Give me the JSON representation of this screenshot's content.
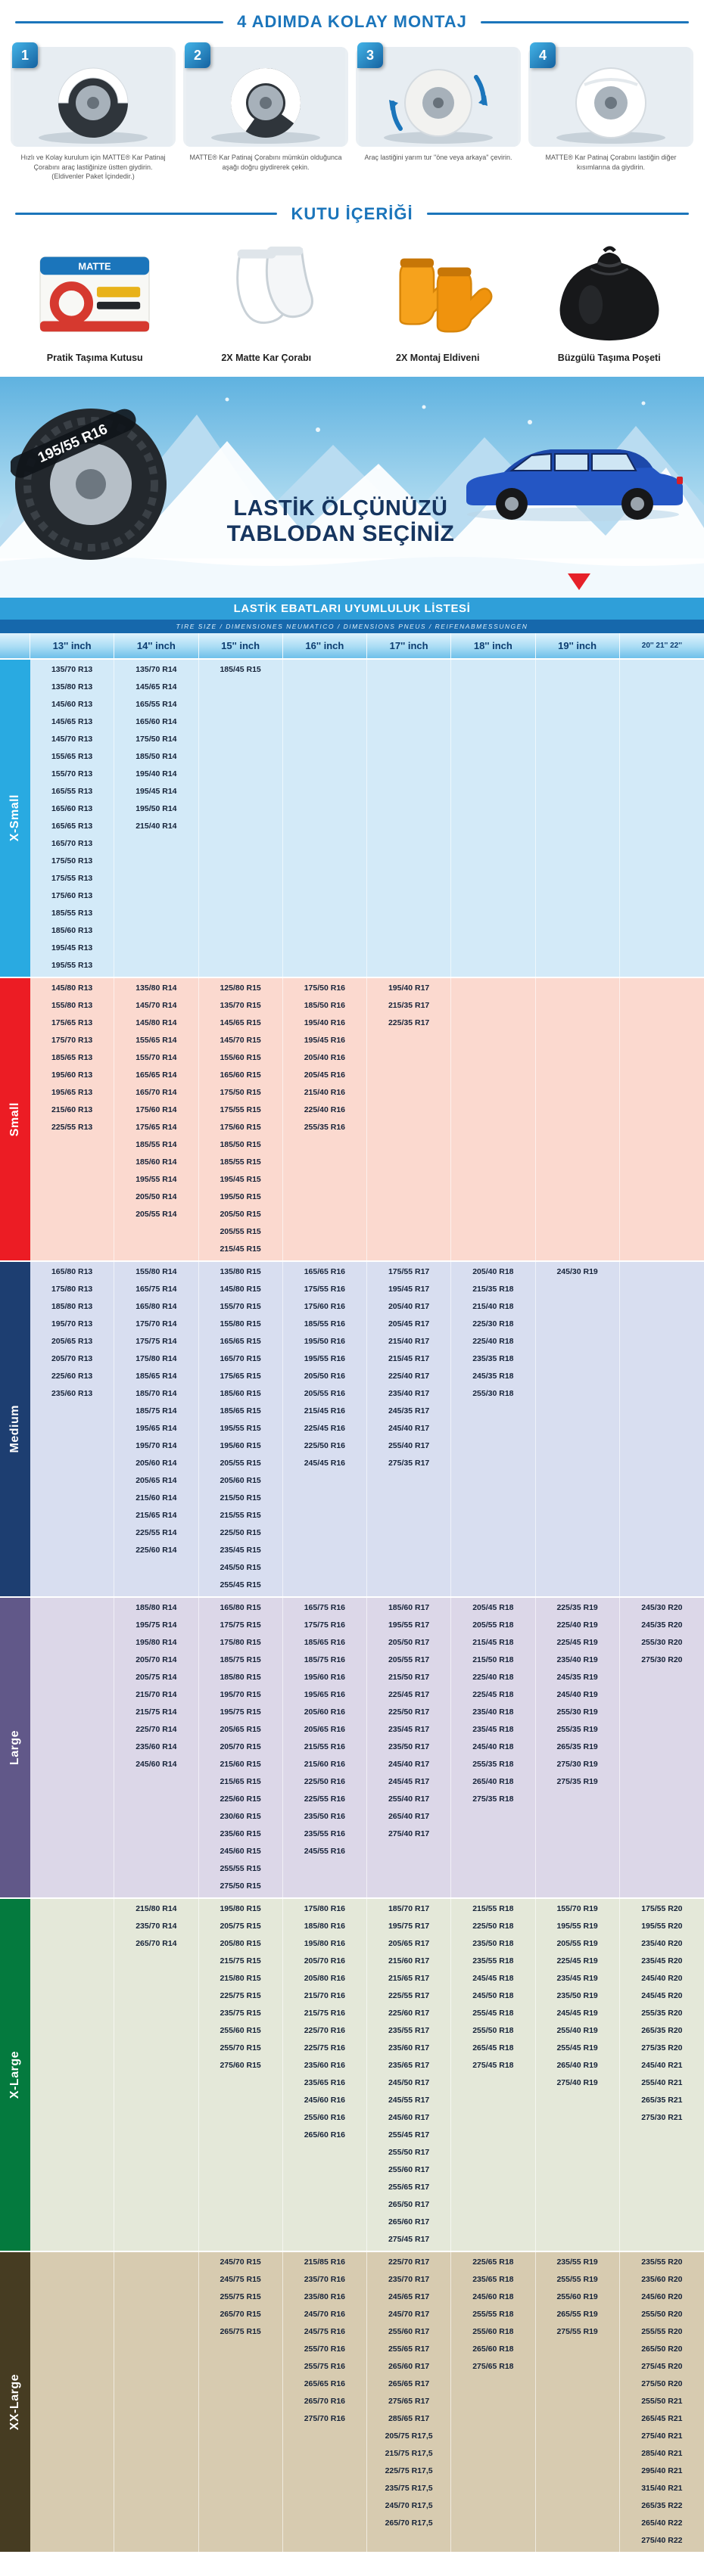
{
  "steps_section": {
    "title": "4 ADIMDA KOLAY MONTAJ",
    "steps": [
      {
        "number": "1",
        "caption": "Hızlı ve Kolay kurulum için MATTE® Kar Patinaj Çorabını araç lastiğinize üstten giydirin. (Eldivenler Paket İçindedir.)"
      },
      {
        "number": "2",
        "caption": "MATTE® Kar Patinaj Çorabını mümkün olduğunca aşağı doğru giydirerek çekin."
      },
      {
        "number": "3",
        "caption": "Araç lastiğini yarım tur \"öne veya arkaya\" çevirin."
      },
      {
        "number": "4",
        "caption": "MATTE® Kar Patinaj Çorabını lastiğin diğer kısımlarına da giydirin."
      }
    ]
  },
  "contents_section": {
    "title": "KUTU İÇERİĞİ",
    "items": [
      {
        "caption": "Pratik Taşıma Kutusu",
        "icon": "carry-box",
        "brand": "MATTE"
      },
      {
        "caption": "2X Matte Kar Çorabı",
        "icon": "snow-socks"
      },
      {
        "caption": "2X Montaj Eldiveni",
        "icon": "gloves"
      },
      {
        "caption": "Büzgülü Taşıma Poşeti",
        "icon": "drawstring-bag"
      }
    ]
  },
  "banner": {
    "headline_line1": "LASTİK ÖLÇÜNÜZÜ",
    "headline_line2": "TABLODAN SEÇİNİZ",
    "tire_size_label": "195/55 R16"
  },
  "table": {
    "title": "LASTİK EBATLARI UYUMLULUK LİSTESİ",
    "subtitle": "TIRE SIZE / DIMENSIONES NEUMATICO / DIMENSIONS PNEUS / REIFENABMESSUNGEN",
    "column_headers": [
      "13'' inch",
      "14'' inch",
      "15'' inch",
      "16'' inch",
      "17'' inch",
      "18'' inch",
      "19'' inch",
      "20'' 21'' 22''"
    ],
    "sections": [
      {
        "label": "X-Small",
        "band_color": "#29aae1",
        "bg_color": "#d3eaf8",
        "columns": [
          [
            "135/70 R13",
            "135/80 R13",
            "145/60 R13",
            "145/65 R13",
            "145/70 R13",
            "155/65 R13",
            "155/70 R13",
            "165/55 R13",
            "165/60 R13",
            "165/65 R13",
            "165/70 R13",
            "175/50 R13",
            "175/55 R13",
            "175/60 R13",
            "185/55 R13",
            "185/60 R13",
            "195/45 R13",
            "195/55 R13"
          ],
          [
            "135/70 R14",
            "145/65 R14",
            "165/55 R14",
            "165/60 R14",
            "175/50 R14",
            "185/50 R14",
            "195/40 R14",
            "195/45 R14",
            "195/50 R14",
            "215/40 R14"
          ],
          [
            "185/45 R15"
          ],
          [],
          [],
          [],
          [],
          []
        ]
      },
      {
        "label": "Small",
        "band_color": "#ec1c24",
        "bg_color": "#fbd9cf",
        "columns": [
          [
            "145/80 R13",
            "155/80 R13",
            "175/65 R13",
            "175/70 R13",
            "185/65 R13",
            "195/60 R13",
            "195/65 R13",
            "215/60 R13",
            "225/55 R13"
          ],
          [
            "135/80 R14",
            "145/70 R14",
            "145/80 R14",
            "155/65 R14",
            "155/70 R14",
            "165/65 R14",
            "165/70 R14",
            "175/60 R14",
            "175/65 R14",
            "185/55 R14",
            "185/60 R14",
            "195/55 R14",
            "205/50 R14",
            "205/55 R14"
          ],
          [
            "125/80 R15",
            "135/70 R15",
            "145/65 R15",
            "145/70 R15",
            "155/60 R15",
            "165/60 R15",
            "175/50 R15",
            "175/55 R15",
            "175/60 R15",
            "185/50 R15",
            "185/55 R15",
            "195/45 R15",
            "195/50 R15",
            "205/50 R15",
            "205/55 R15",
            "215/45 R15"
          ],
          [
            "175/50 R16",
            "185/50 R16",
            "195/40 R16",
            "195/45 R16",
            "205/40 R16",
            "205/45 R16",
            "215/40 R16",
            "225/40 R16",
            "255/35 R16"
          ],
          [
            "195/40 R17",
            "215/35 R17",
            "225/35 R17"
          ],
          [],
          [],
          []
        ]
      },
      {
        "label": "Medium",
        "band_color": "#1d3e71",
        "bg_color": "#d8def0",
        "columns": [
          [
            "165/80 R13",
            "175/80 R13",
            "185/80 R13",
            "195/70 R13",
            "205/65 R13",
            "205/70 R13",
            "225/60 R13",
            "235/60 R13"
          ],
          [
            "155/80 R14",
            "165/75 R14",
            "165/80 R14",
            "175/70 R14",
            "175/75 R14",
            "175/80 R14",
            "185/65 R14",
            "185/70 R14",
            "185/75 R14",
            "195/65 R14",
            "195/70 R14",
            "205/60 R14",
            "205/65 R14",
            "215/60 R14",
            "215/65 R14",
            "225/55 R14",
            "225/60 R14"
          ],
          [
            "135/80 R15",
            "145/80 R15",
            "155/70 R15",
            "155/80 R15",
            "165/65 R15",
            "165/70 R15",
            "175/65 R15",
            "185/60 R15",
            "185/65 R15",
            "195/55 R15",
            "195/60 R15",
            "205/55 R15",
            "205/60 R15",
            "215/50 R15",
            "215/55 R15",
            "225/50 R15",
            "235/45 R15",
            "245/50 R15",
            "255/45 R15"
          ],
          [
            "165/65 R16",
            "175/55 R16",
            "175/60 R16",
            "185/55 R16",
            "195/50 R16",
            "195/55 R16",
            "205/50 R16",
            "205/55 R16",
            "215/45 R16",
            "225/45 R16",
            "225/50 R16",
            "245/45 R16"
          ],
          [
            "175/55 R17",
            "195/45 R17",
            "205/40 R17",
            "205/45 R17",
            "215/40 R17",
            "215/45 R17",
            "225/40 R17",
            "235/40 R17",
            "245/35 R17",
            "245/40 R17",
            "255/40 R17",
            "275/35 R17"
          ],
          [
            "205/40 R18",
            "215/35 R18",
            "215/40 R18",
            "225/30 R18",
            "225/40 R18",
            "235/35 R18",
            "245/35 R18",
            "255/30 R18"
          ],
          [
            "245/30 R19"
          ],
          []
        ]
      },
      {
        "label": "Large",
        "band_color": "#615889",
        "bg_color": "#dcd7e8",
        "columns": [
          [],
          [
            "185/80 R14",
            "195/75 R14",
            "195/80 R14",
            "205/70 R14",
            "205/75 R14",
            "215/70 R14",
            "215/75 R14",
            "225/70 R14",
            "235/60 R14",
            "245/60 R14"
          ],
          [
            "165/80 R15",
            "175/75 R15",
            "175/80 R15",
            "185/75 R15",
            "185/80 R15",
            "195/70 R15",
            "195/75 R15",
            "205/65 R15",
            "205/70 R15",
            "215/60 R15",
            "215/65 R15",
            "225/60 R15",
            "230/60 R15",
            "235/60 R15",
            "245/60 R15",
            "255/55 R15",
            "275/50 R15"
          ],
          [
            "165/75 R16",
            "175/75 R16",
            "185/65 R16",
            "185/75 R16",
            "195/60 R16",
            "195/65 R16",
            "205/60 R16",
            "205/65 R16",
            "215/55 R16",
            "215/60 R16",
            "225/50 R16",
            "225/55 R16",
            "235/50 R16",
            "235/55 R16",
            "245/55 R16"
          ],
          [
            "185/60 R17",
            "195/55 R17",
            "205/50 R17",
            "205/55 R17",
            "215/50 R17",
            "225/45 R17",
            "225/50 R17",
            "235/45 R17",
            "235/50 R17",
            "245/40 R17",
            "245/45 R17",
            "255/40 R17",
            "265/40 R17",
            "275/40 R17"
          ],
          [
            "205/45 R18",
            "205/55 R18",
            "215/45 R18",
            "215/50 R18",
            "225/40 R18",
            "225/45 R18",
            "235/40 R18",
            "235/45 R18",
            "245/40 R18",
            "255/35 R18",
            "265/40 R18",
            "275/35 R18"
          ],
          [
            "225/35 R19",
            "225/40 R19",
            "225/45 R19",
            "235/40 R19",
            "245/35 R19",
            "245/40 R19",
            "255/30 R19",
            "255/35 R19",
            "265/35 R19",
            "275/30 R19",
            "275/35 R19"
          ],
          [
            "245/30 R20",
            "245/35 R20",
            "255/30 R20",
            "275/30 R20"
          ]
        ]
      },
      {
        "label": "X-Large",
        "band_color": "#047a3e",
        "bg_color": "#e4e8d9",
        "columns": [
          [],
          [
            "215/80 R14",
            "235/70 R14",
            "265/70 R14"
          ],
          [
            "195/80 R15",
            "205/75 R15",
            "205/80 R15",
            "215/75 R15",
            "215/80 R15",
            "225/75 R15",
            "235/75 R15",
            "255/60 R15",
            "255/70 R15",
            "275/60 R15"
          ],
          [
            "175/80 R16",
            "185/80 R16",
            "195/80 R16",
            "205/70 R16",
            "205/80 R16",
            "215/70 R16",
            "215/75 R16",
            "225/70 R16",
            "225/75 R16",
            "235/60 R16",
            "235/65 R16",
            "245/60 R16",
            "255/60 R16",
            "265/60 R16"
          ],
          [
            "185/70 R17",
            "195/75 R17",
            "205/65 R17",
            "215/60 R17",
            "215/65 R17",
            "225/55 R17",
            "225/60 R17",
            "235/55 R17",
            "235/60 R17",
            "235/65 R17",
            "245/50 R17",
            "245/55 R17",
            "245/60 R17",
            "255/45 R17",
            "255/50 R17",
            "255/60 R17",
            "255/65 R17",
            "265/50 R17",
            "265/60 R17",
            "275/45 R17"
          ],
          [
            "215/55 R18",
            "225/50 R18",
            "235/50 R18",
            "235/55 R18",
            "245/45 R18",
            "245/50 R18",
            "255/45 R18",
            "255/50 R18",
            "265/45 R18",
            "275/45 R18"
          ],
          [
            "155/70 R19",
            "195/55 R19",
            "205/55 R19",
            "225/45 R19",
            "235/45 R19",
            "235/50 R19",
            "245/45 R19",
            "255/40 R19",
            "255/45 R19",
            "265/40 R19",
            "275/40 R19"
          ],
          [
            "175/55 R20",
            "195/55 R20",
            "235/40 R20",
            "235/45 R20",
            "245/40 R20",
            "245/45 R20",
            "255/35 R20",
            "265/35 R20",
            "275/35 R20",
            "245/40 R21",
            "255/40 R21",
            "265/35 R21",
            "275/30 R21"
          ]
        ]
      },
      {
        "label": "XX-Large",
        "band_color": "#463c22",
        "bg_color": "#d7cbb0",
        "columns": [
          [],
          [],
          [
            "245/70 R15",
            "245/75 R15",
            "255/75 R15",
            "265/70 R15",
            "265/75 R15"
          ],
          [
            "215/85 R16",
            "235/70 R16",
            "235/80 R16",
            "245/70 R16",
            "245/75 R16",
            "255/70 R16",
            "255/75 R16",
            "265/65 R16",
            "265/70 R16",
            "275/70 R16"
          ],
          [
            "225/70 R17",
            "235/70 R17",
            "245/65 R17",
            "245/70 R17",
            "255/60 R17",
            "255/65 R17",
            "265/60 R17",
            "265/65 R17",
            "275/65 R17",
            "285/65 R17",
            "205/75 R17,5",
            "215/75 R17,5",
            "225/75 R17,5",
            "235/75 R17,5",
            "245/70 R17,5",
            "265/70 R17,5"
          ],
          [
            "225/65 R18",
            "235/65 R18",
            "245/60 R18",
            "255/55 R18",
            "255/60 R18",
            "265/60 R18",
            "275/65 R18"
          ],
          [
            "235/55 R19",
            "255/55 R19",
            "255/60 R19",
            "265/55 R19",
            "275/55 R19"
          ],
          [
            "235/55 R20",
            "235/60 R20",
            "245/60 R20",
            "255/50 R20",
            "255/55 R20",
            "265/50 R20",
            "275/45 R20",
            "275/50 R20",
            "255/50 R21",
            "265/45 R21",
            "275/40 R21",
            "285/40 R21",
            "295/40 R21",
            "315/40 R21",
            "265/35 R22",
            "265/40 R22",
            "275/40 R22"
          ]
        ]
      }
    ]
  },
  "colors": {
    "accent_blue": "#1b75bb",
    "table_title_blue": "#2f9fd9",
    "headline_navy": "#16355f",
    "arrow_red": "#e62129"
  }
}
